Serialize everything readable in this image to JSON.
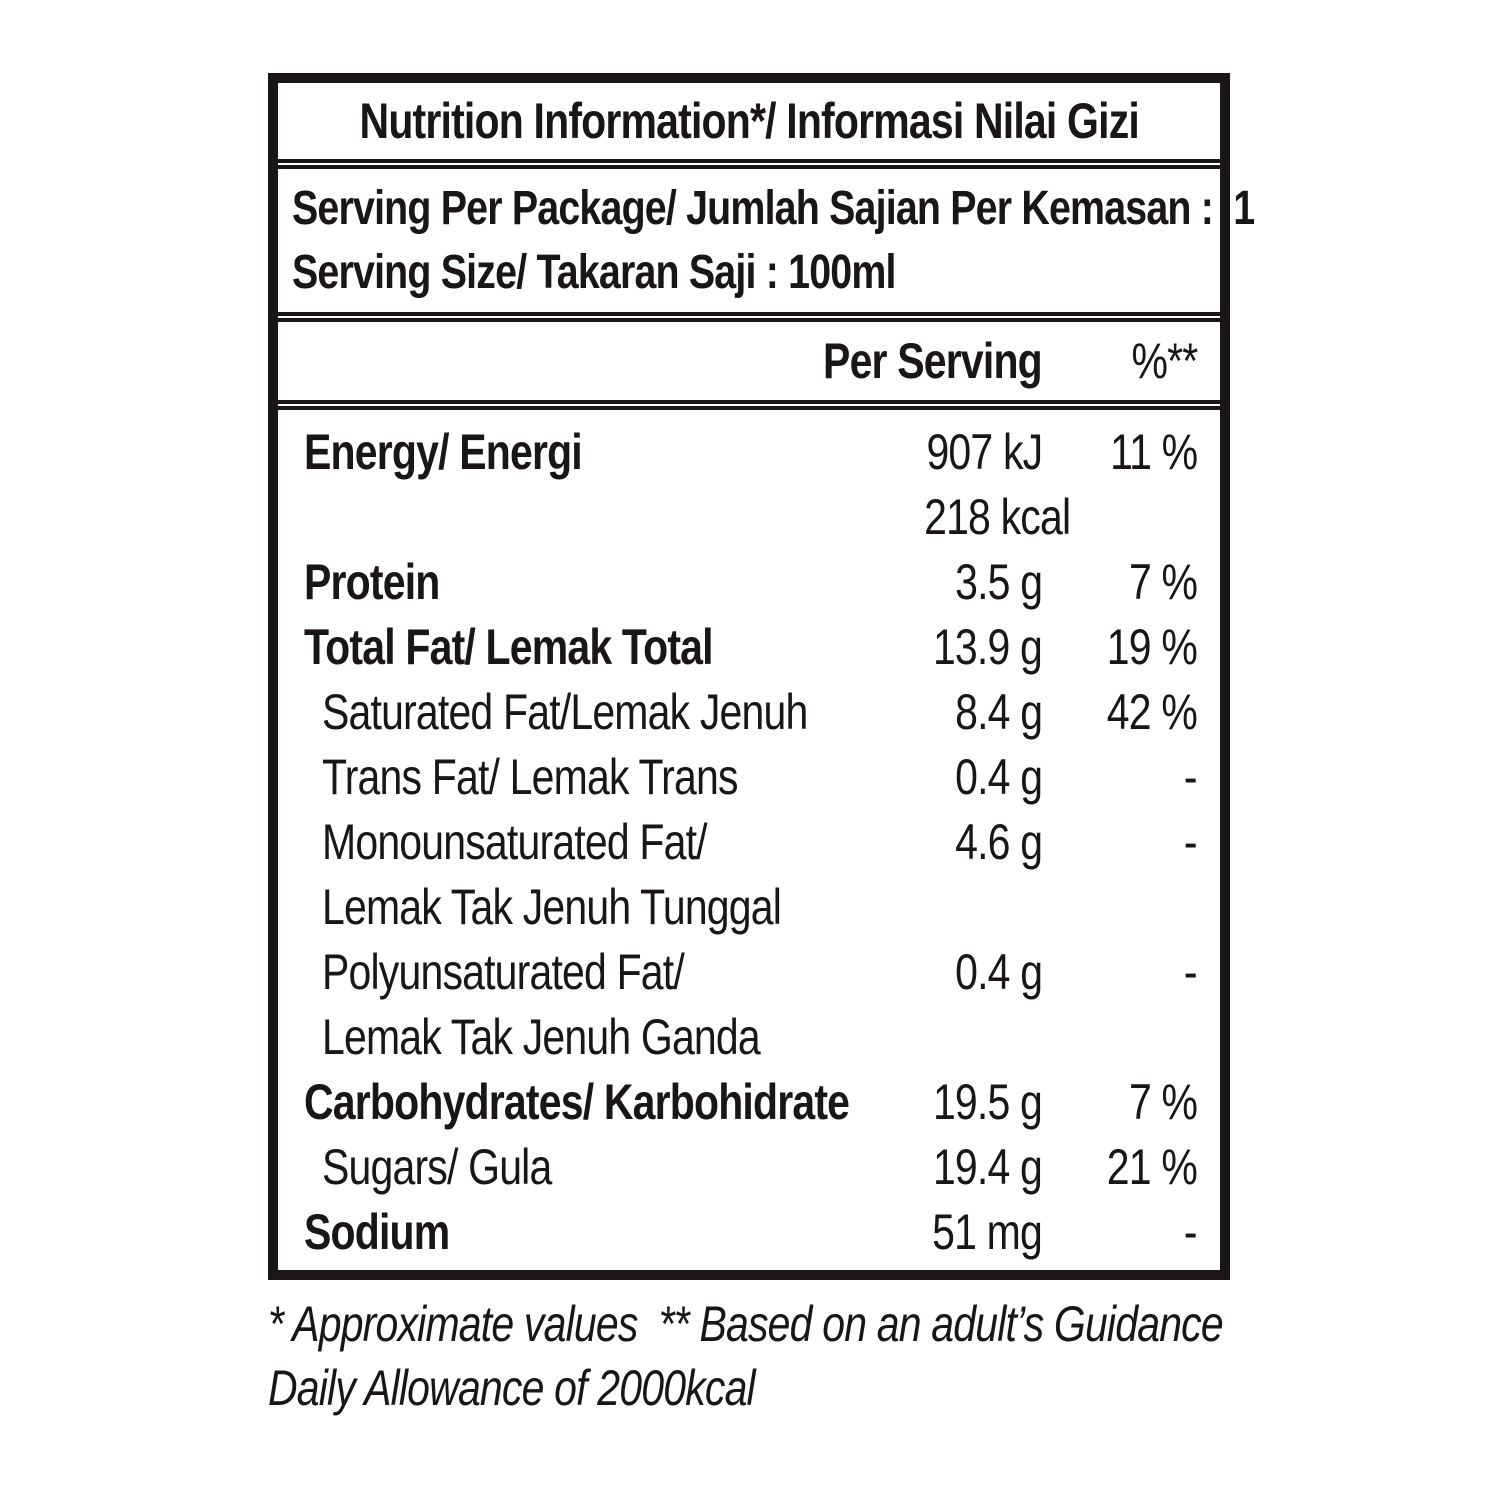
{
  "colors": {
    "ink": "#1a1516",
    "background": "#ffffff"
  },
  "label": {
    "title": "Nutrition Information*/ Informasi Nilai Gizi",
    "serving_lines": [
      "Serving Per Package/ Jumlah Sajian Per Kemasan :  1",
      "Serving Size/ Takaran Saji : 100ml"
    ],
    "columns": {
      "per_serving": "Per Serving",
      "percent": "%**"
    },
    "rows": [
      {
        "name": "energy",
        "bold": true,
        "indent": 0,
        "label_lines": [
          "Energy/ Energi"
        ],
        "value_lines": [
          "907 kJ",
          "218 kcal"
        ],
        "pct": "11 %"
      },
      {
        "name": "protein",
        "bold": true,
        "indent": 0,
        "label_lines": [
          "Protein"
        ],
        "value_lines": [
          "3.5 g"
        ],
        "pct": "7 %"
      },
      {
        "name": "total-fat",
        "bold": true,
        "indent": 0,
        "label_lines": [
          "Total Fat/ Lemak Total"
        ],
        "value_lines": [
          "13.9 g"
        ],
        "pct": "19 %"
      },
      {
        "name": "saturated-fat",
        "bold": false,
        "indent": 1,
        "label_lines": [
          "Saturated Fat/Lemak Jenuh"
        ],
        "value_lines": [
          "8.4 g"
        ],
        "pct": "42 %"
      },
      {
        "name": "trans-fat",
        "bold": false,
        "indent": 1,
        "label_lines": [
          "Trans Fat/ Lemak Trans"
        ],
        "value_lines": [
          "0.4 g"
        ],
        "pct": "-"
      },
      {
        "name": "monounsaturated-fat",
        "bold": false,
        "indent": 1,
        "label_lines": [
          "Monounsaturated Fat/",
          "Lemak Tak Jenuh Tunggal"
        ],
        "value_lines": [
          "4.6 g"
        ],
        "pct": "-"
      },
      {
        "name": "polyunsaturated-fat",
        "bold": false,
        "indent": 1,
        "label_lines": [
          "Polyunsaturated Fat/",
          "Lemak Tak Jenuh Ganda"
        ],
        "value_lines": [
          "0.4 g"
        ],
        "pct": "-"
      },
      {
        "name": "carbohydrates",
        "bold": true,
        "indent": 0,
        "label_lines": [
          "Carbohydrates/ Karbohidrate"
        ],
        "value_lines": [
          "19.5 g"
        ],
        "pct": "7 %"
      },
      {
        "name": "sugars",
        "bold": false,
        "indent": 1,
        "label_lines": [
          "Sugars/ Gula"
        ],
        "value_lines": [
          "19.4 g"
        ],
        "pct": "21 %"
      },
      {
        "name": "sodium",
        "bold": true,
        "indent": 0,
        "label_lines": [
          "Sodium"
        ],
        "value_lines": [
          "51 mg"
        ],
        "pct": "-"
      }
    ],
    "footnote_lines": [
      "* Approximate values  ** Based on an adult’s Guidance",
      "Daily Allowance of 2000kcal"
    ]
  }
}
